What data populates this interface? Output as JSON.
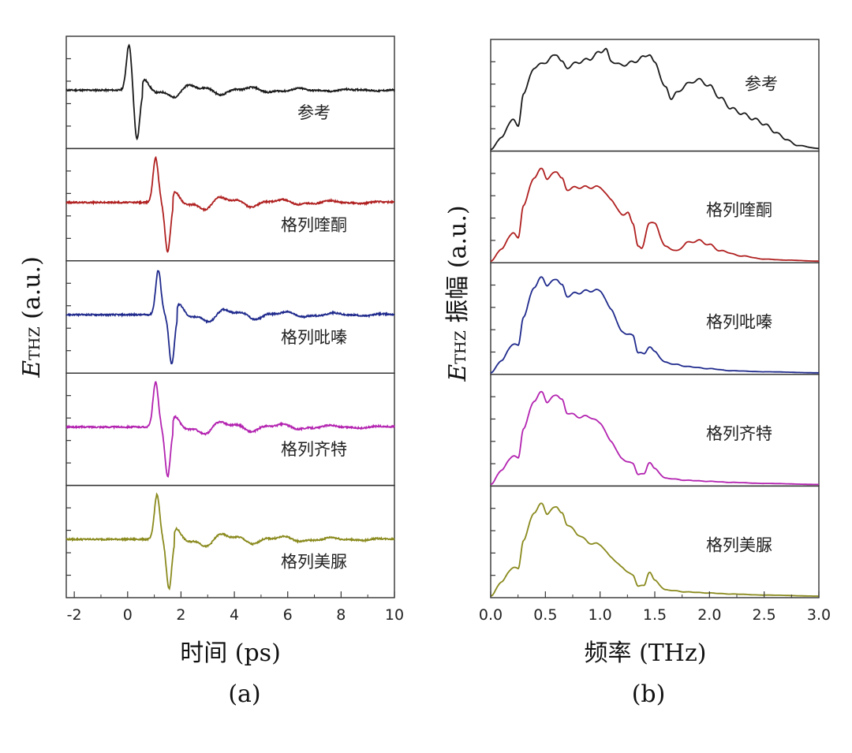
{
  "chart_data": [
    {
      "type": "line",
      "panel_label": "(a)",
      "xlabel_prefix": "时间",
      "xlabel_unit": "(ps)",
      "ylabel_symbol": "E",
      "ylabel_sub": "THZ",
      "ylabel_unit": "(a.u.)",
      "xlim": [
        -2.3,
        10
      ],
      "xticks": [
        -2,
        0,
        2,
        4,
        6,
        8,
        10
      ],
      "xtick_labels": [
        "-2",
        "0",
        "2",
        "4",
        "6",
        "8",
        "10"
      ],
      "series": [
        {
          "name": "参考",
          "color": "#1a1a1a",
          "peak_time": 0.05,
          "trough_time": 0.35,
          "peak": 0.92,
          "trough": -1.0
        },
        {
          "name": "格列喹酮",
          "color": "#b02020",
          "peak_time": 1.05,
          "trough_time": 1.5,
          "peak": 0.9,
          "trough": -1.0
        },
        {
          "name": "格列吡嗪",
          "color": "#1f2a8c",
          "peak_time": 1.15,
          "trough_time": 1.65,
          "peak": 0.9,
          "trough": -1.0
        },
        {
          "name": "格列齐特",
          "color": "#b323b0",
          "peak_time": 1.05,
          "trough_time": 1.5,
          "peak": 0.9,
          "trough": -1.0
        },
        {
          "name": "格列美脲",
          "color": "#8a8a1e",
          "peak_time": 1.1,
          "trough_time": 1.55,
          "peak": 0.9,
          "trough": -1.0
        }
      ]
    },
    {
      "type": "line",
      "panel_label": "(b)",
      "xlabel_prefix": "频率",
      "xlabel_unit": "(THz)",
      "ylabel_symbol": "E",
      "ylabel_sub": "THZ",
      "ylabel_cjk": "振幅",
      "ylabel_unit": "(a.u.)",
      "xlim": [
        0,
        3
      ],
      "xticks": [
        0,
        0.5,
        1.0,
        1.5,
        2.0,
        2.5,
        3.0
      ],
      "xtick_labels": [
        "0.0",
        "0.5",
        "1.0",
        "1.5",
        "2.0",
        "2.5",
        "3.0"
      ],
      "series": [
        {
          "name": "参考",
          "color": "#1a1a1a",
          "x": [
            0,
            0.1,
            0.2,
            0.25,
            0.3,
            0.4,
            0.5,
            0.6,
            0.65,
            0.7,
            0.8,
            0.9,
            1.0,
            1.05,
            1.1,
            1.2,
            1.3,
            1.4,
            1.45,
            1.5,
            1.6,
            1.65,
            1.7,
            1.8,
            1.9,
            2.0,
            2.1,
            2.2,
            2.3,
            2.4,
            2.5,
            2.6,
            2.7,
            2.8,
            3.0
          ],
          "y": [
            0,
            0.12,
            0.3,
            0.22,
            0.55,
            0.8,
            0.85,
            0.93,
            0.85,
            0.8,
            0.85,
            0.88,
            0.95,
            0.98,
            0.86,
            0.82,
            0.85,
            0.9,
            0.93,
            0.84,
            0.6,
            0.5,
            0.55,
            0.64,
            0.68,
            0.62,
            0.5,
            0.4,
            0.35,
            0.3,
            0.25,
            0.17,
            0.1,
            0.04,
            0.01
          ]
        },
        {
          "name": "格列喹酮",
          "color": "#b02020",
          "x": [
            0,
            0.1,
            0.2,
            0.25,
            0.3,
            0.4,
            0.47,
            0.52,
            0.6,
            0.65,
            0.7,
            0.8,
            0.9,
            1.0,
            1.1,
            1.2,
            1.25,
            1.3,
            1.35,
            1.38,
            1.45,
            1.5,
            1.6,
            1.7,
            1.8,
            1.9,
            2.0,
            2.1,
            2.3,
            2.5,
            2.7,
            3.0
          ],
          "y": [
            0,
            0.12,
            0.28,
            0.22,
            0.55,
            0.82,
            0.9,
            0.8,
            0.88,
            0.8,
            0.7,
            0.72,
            0.72,
            0.72,
            0.6,
            0.45,
            0.48,
            0.36,
            0.15,
            0.12,
            0.38,
            0.36,
            0.14,
            0.1,
            0.18,
            0.2,
            0.16,
            0.1,
            0.05,
            0.02,
            0.01,
            0.0
          ]
        },
        {
          "name": "格列吡嗪",
          "color": "#1f2a8c",
          "x": [
            0,
            0.1,
            0.2,
            0.25,
            0.3,
            0.4,
            0.47,
            0.52,
            0.6,
            0.65,
            0.7,
            0.8,
            0.9,
            1.0,
            1.1,
            1.2,
            1.3,
            1.35,
            1.4,
            1.45,
            1.5,
            1.6,
            1.7,
            1.8,
            2.0,
            2.2,
            2.5,
            3.0
          ],
          "y": [
            0,
            0.12,
            0.28,
            0.26,
            0.55,
            0.84,
            0.93,
            0.85,
            0.92,
            0.85,
            0.75,
            0.78,
            0.8,
            0.8,
            0.62,
            0.4,
            0.36,
            0.2,
            0.18,
            0.26,
            0.2,
            0.1,
            0.08,
            0.06,
            0.04,
            0.02,
            0.01,
            0.0
          ]
        },
        {
          "name": "格列齐特",
          "color": "#b323b0",
          "x": [
            0,
            0.1,
            0.2,
            0.25,
            0.3,
            0.4,
            0.47,
            0.52,
            0.6,
            0.65,
            0.7,
            0.8,
            0.9,
            1.0,
            1.1,
            1.2,
            1.3,
            1.35,
            1.4,
            1.45,
            1.5,
            1.6,
            1.8,
            2.0,
            2.2,
            2.5,
            3.0
          ],
          "y": [
            0,
            0.14,
            0.28,
            0.25,
            0.55,
            0.82,
            0.9,
            0.8,
            0.88,
            0.82,
            0.7,
            0.66,
            0.66,
            0.6,
            0.42,
            0.25,
            0.2,
            0.1,
            0.1,
            0.22,
            0.15,
            0.06,
            0.04,
            0.03,
            0.02,
            0.01,
            0.0
          ]
        },
        {
          "name": "格列美脲",
          "color": "#8a8a1e",
          "x": [
            0,
            0.1,
            0.2,
            0.25,
            0.3,
            0.4,
            0.47,
            0.52,
            0.6,
            0.65,
            0.7,
            0.8,
            0.9,
            1.0,
            1.1,
            1.2,
            1.3,
            1.35,
            1.4,
            1.45,
            1.5,
            1.6,
            1.8,
            2.0,
            2.2,
            2.5,
            3.0
          ],
          "y": [
            0,
            0.14,
            0.28,
            0.26,
            0.55,
            0.82,
            0.9,
            0.8,
            0.88,
            0.8,
            0.7,
            0.6,
            0.52,
            0.5,
            0.38,
            0.28,
            0.2,
            0.1,
            0.1,
            0.24,
            0.15,
            0.06,
            0.04,
            0.03,
            0.02,
            0.01,
            0.0
          ]
        }
      ]
    }
  ]
}
